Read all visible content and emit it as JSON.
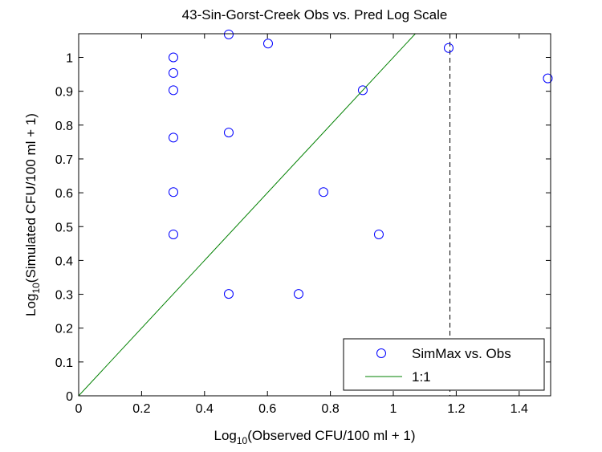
{
  "chart_data": {
    "type": "scatter",
    "title": "43-Sin-Gorst-Creek Obs vs. Pred Log Scale",
    "xlabel": {
      "prefix": "Log",
      "sub": "10",
      "suffix": "(Observed CFU/100 ml + 1)"
    },
    "ylabel": {
      "prefix": "Log",
      "sub": "10",
      "suffix": "(Simulated CFU/100 ml + 1)"
    },
    "xlim": [
      0,
      1.5
    ],
    "ylim": [
      0,
      1.07
    ],
    "xticks": [
      0,
      0.2,
      0.4,
      0.6,
      0.8,
      1,
      1.2,
      1.4
    ],
    "xtick_labels": [
      "0",
      "0.2",
      "0.4",
      "0.6",
      "0.8",
      "1",
      "1.2",
      "1.4"
    ],
    "yticks": [
      0,
      0.1,
      0.2,
      0.3,
      0.4,
      0.5,
      0.6,
      0.7,
      0.8,
      0.9,
      1
    ],
    "ytick_labels": [
      "0",
      "0.1",
      "0.2",
      "0.3",
      "0.4",
      "0.5",
      "0.6",
      "0.7",
      "0.8",
      "0.9",
      "1"
    ],
    "series": [
      {
        "name": "SimMax vs. Obs",
        "marker": "circle",
        "color": "#0000ff",
        "points": [
          [
            0.301,
            1.0
          ],
          [
            0.301,
            0.954
          ],
          [
            0.301,
            0.903
          ],
          [
            0.301,
            0.763
          ],
          [
            0.301,
            0.602
          ],
          [
            0.301,
            0.477
          ],
          [
            0.477,
            1.068
          ],
          [
            0.477,
            0.778
          ],
          [
            0.477,
            0.301
          ],
          [
            0.602,
            1.041
          ],
          [
            0.699,
            0.301
          ],
          [
            0.778,
            0.602
          ],
          [
            0.903,
            0.903
          ],
          [
            0.954,
            0.477
          ],
          [
            1.176,
            1.028
          ],
          [
            1.491,
            0.938
          ]
        ]
      },
      {
        "name": "1:1",
        "type": "line",
        "color": "#008000",
        "points": [
          [
            0,
            0
          ],
          [
            1.07,
            1.07
          ]
        ]
      }
    ],
    "reference_lines": [
      {
        "orientation": "vertical",
        "x": 1.18,
        "style": "dashed",
        "color": "#000000"
      }
    ],
    "legend": {
      "position": "bottom-right",
      "entries": [
        "SimMax vs. Obs",
        "1:1"
      ]
    }
  }
}
